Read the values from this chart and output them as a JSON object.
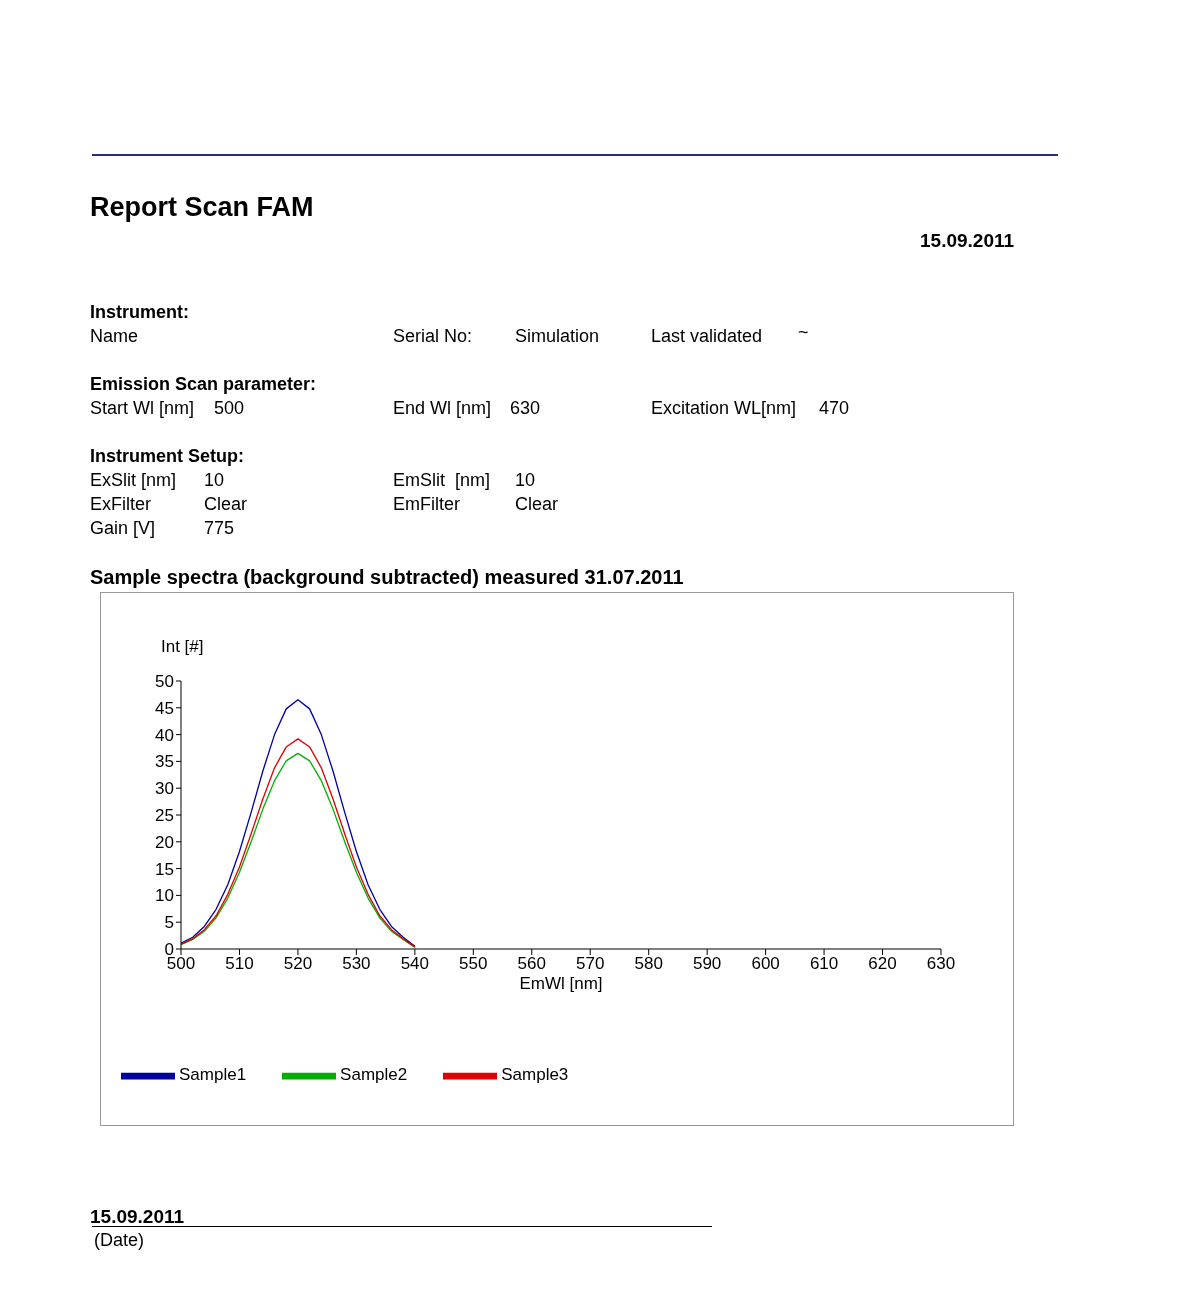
{
  "chart_data": {
    "type": "line",
    "title": "Report  Scan FAM",
    "subtitle": "Sample spectra (background subtracted) measured 31.07.2011",
    "xlabel": "EmWl [nm]",
    "ylabel": "Int [#]",
    "annotations": [
      "15.09.2011",
      "Instrument:",
      "Name",
      "Serial No:",
      "Simulation",
      "Last validated",
      "~",
      "Emission Scan parameter:",
      "Start Wl [nm]",
      "500",
      "End Wl [nm]",
      "630",
      "Excitation WL[nm]",
      "470",
      "Instrument Setup:",
      "ExSlit [nm]",
      "10",
      "EmSlit  [nm]",
      "10",
      "ExFilter",
      "Clear",
      "EmFilter",
      "Clear",
      "Gain [V]",
      "775",
      "15.09.2011",
      "(Date)"
    ],
    "x": [
      500,
      502,
      504,
      506,
      508,
      510,
      512,
      514,
      516,
      518,
      520,
      522,
      524,
      526,
      528,
      530,
      532,
      534,
      536,
      538,
      540
    ],
    "series": [
      {
        "name": "Sample1",
        "color": "#0000a0",
        "values": [
          1.1,
          2.2,
          4.2,
          7.4,
          12.0,
          18.2,
          25.5,
          33.2,
          40.0,
          44.8,
          46.5,
          44.8,
          40.0,
          33.2,
          25.5,
          18.2,
          12.0,
          7.4,
          4.2,
          2.2,
          0.5
        ]
      },
      {
        "name": "Sample2",
        "color": "#00b000",
        "values": [
          0.8,
          1.8,
          3.3,
          5.8,
          9.5,
          14.3,
          20.0,
          26.1,
          31.4,
          35.1,
          36.5,
          35.1,
          31.4,
          26.1,
          20.0,
          14.3,
          9.5,
          5.8,
          3.3,
          1.8,
          0.3
        ]
      },
      {
        "name": "Sample3",
        "color": "#e00000",
        "values": [
          0.9,
          1.9,
          3.6,
          6.2,
          10.2,
          15.3,
          21.5,
          28.0,
          33.8,
          37.7,
          39.2,
          37.7,
          33.8,
          28.0,
          21.5,
          15.3,
          10.2,
          6.2,
          3.6,
          1.9,
          0.4
        ]
      }
    ],
    "xlim": [
      500,
      630
    ],
    "xticks": [
      500,
      510,
      520,
      530,
      540,
      550,
      560,
      570,
      580,
      590,
      600,
      610,
      620,
      630
    ],
    "ylim": [
      0,
      50
    ],
    "yticks": [
      0,
      5,
      10,
      15,
      20,
      25,
      30,
      35,
      40,
      45,
      50
    ],
    "grid": false,
    "legend": "bottom",
    "marker": "none",
    "line_style": "solid"
  }
}
